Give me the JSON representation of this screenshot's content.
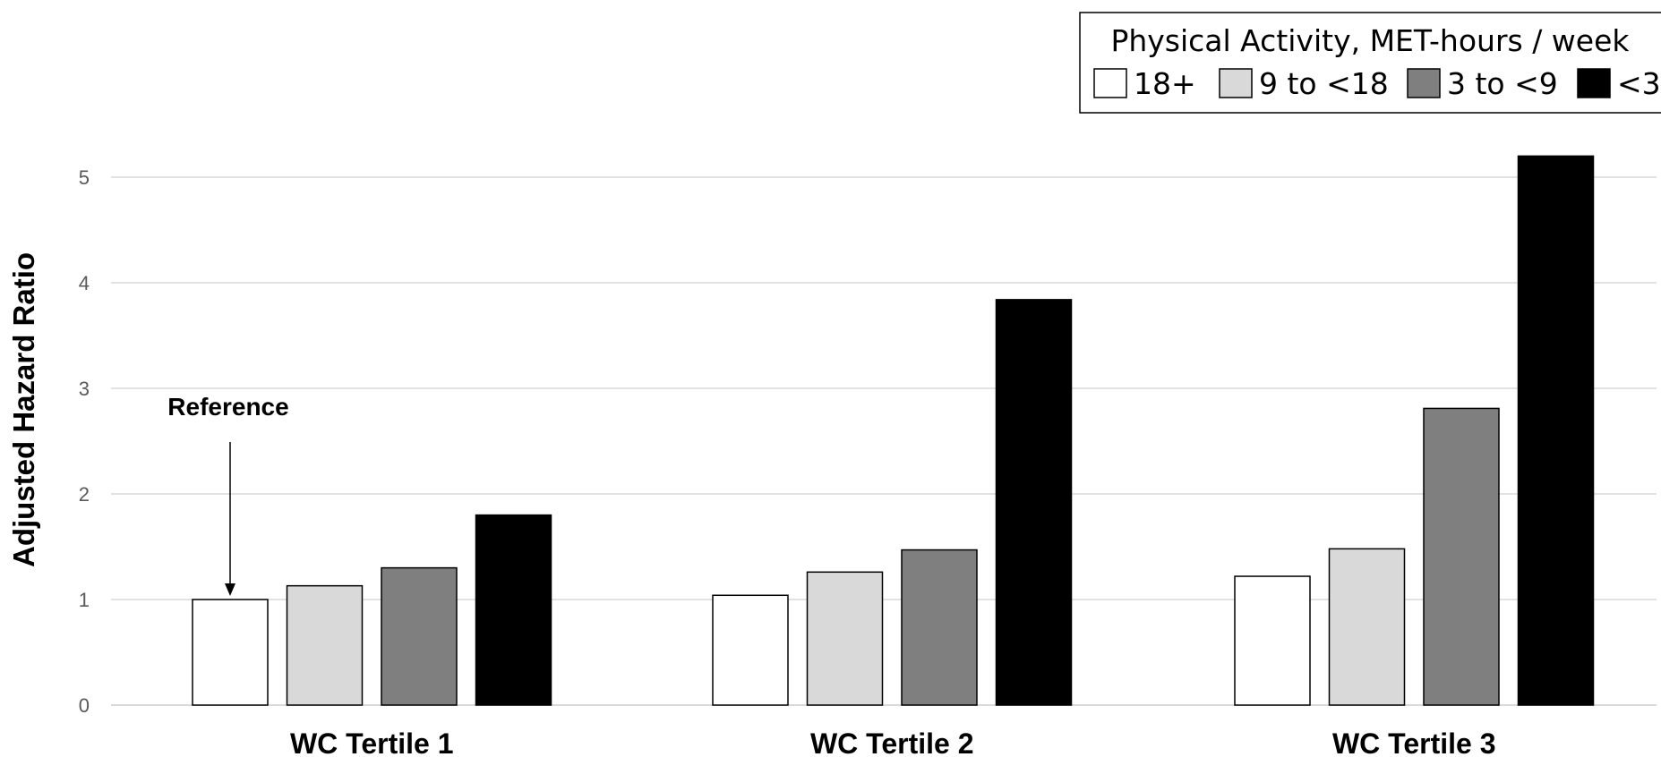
{
  "chart_data": {
    "type": "bar",
    "categories": [
      "WC Tertile 1",
      "WC Tertile 2",
      "WC Tertile 3"
    ],
    "series": [
      {
        "name": "18+",
        "color": "#ffffff",
        "values": [
          1.0,
          1.04,
          1.22
        ]
      },
      {
        "name": "9 to <18",
        "color": "#d9d9d9",
        "values": [
          1.13,
          1.26,
          1.48
        ]
      },
      {
        "name": "3 to <9",
        "color": "#7f7f7f",
        "values": [
          1.3,
          1.47,
          2.81
        ]
      },
      {
        "name": "<3",
        "color": "#000000",
        "values": [
          1.8,
          3.84,
          5.2
        ]
      }
    ],
    "ylabel": "Adjusted Hazard Ratio",
    "ylim": [
      0,
      5.2
    ],
    "yticks": [
      "0",
      "1",
      "2",
      "3",
      "4",
      "5"
    ],
    "grid": true,
    "legend": {
      "title": "Physical Activity, MET-hours / week",
      "placement": "top-right"
    },
    "annotation": {
      "text": "Reference",
      "category": 0,
      "series": 0
    }
  }
}
